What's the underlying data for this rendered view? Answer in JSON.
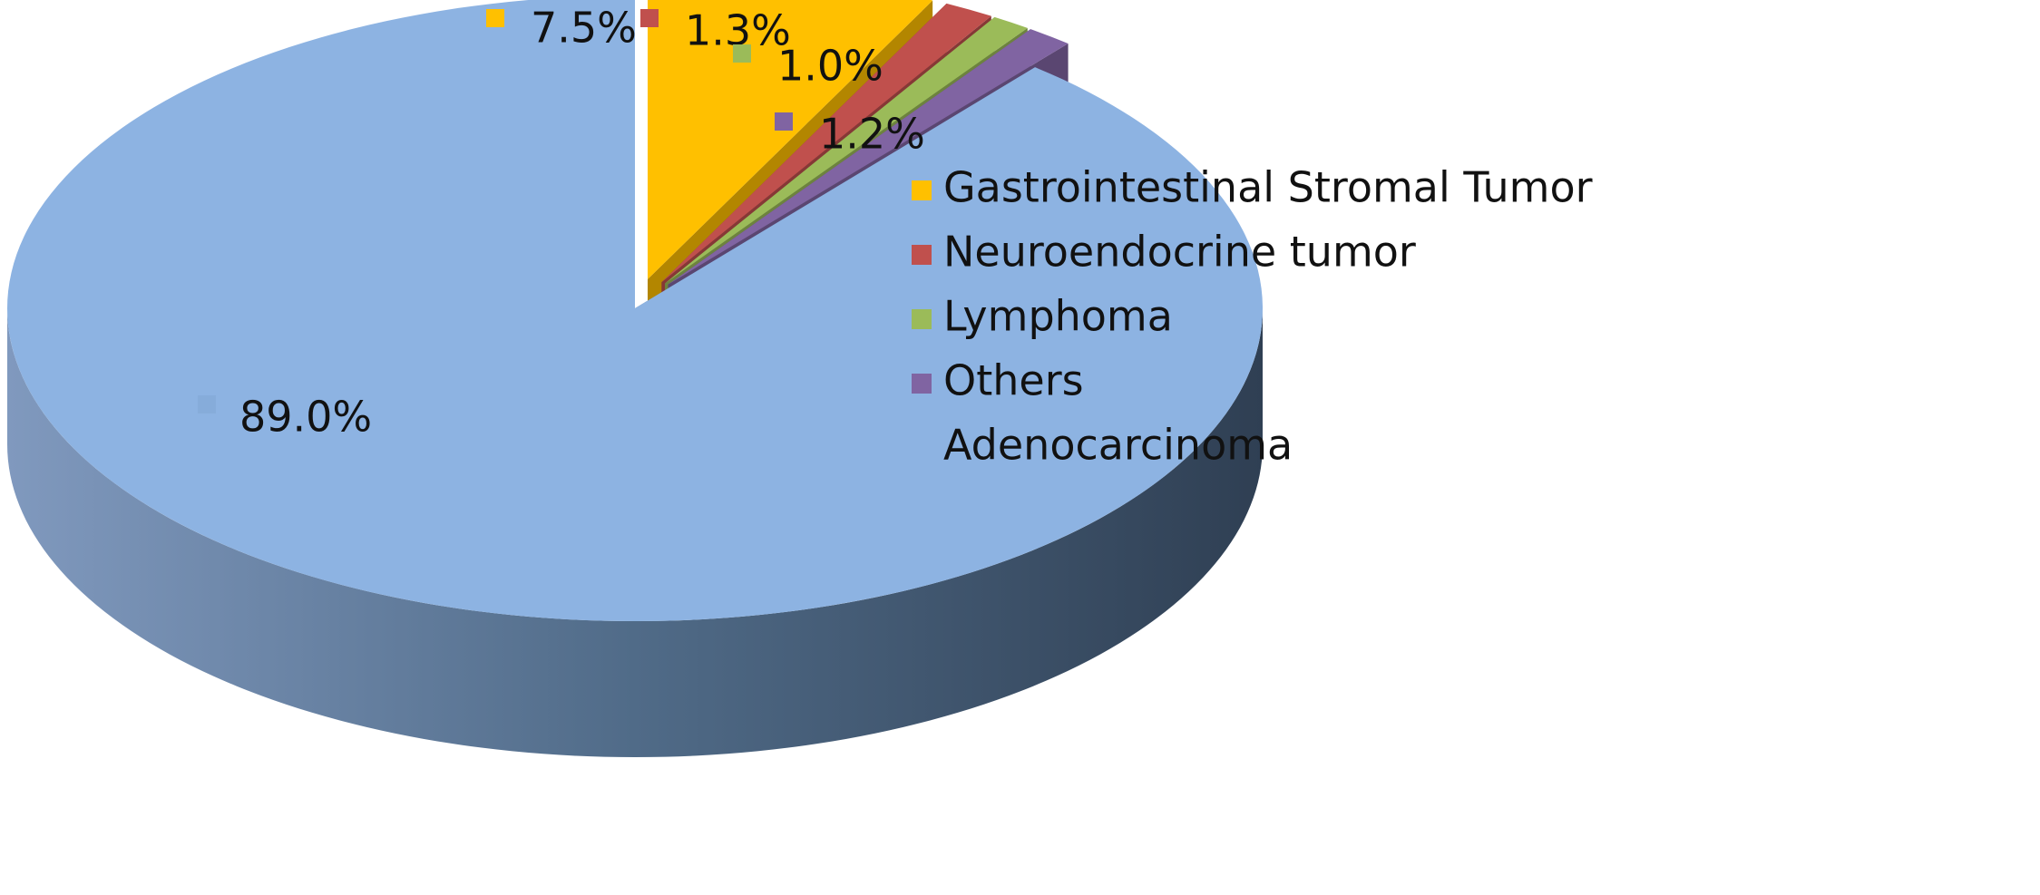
{
  "chart_data": {
    "type": "pie",
    "style": "3d",
    "title": "",
    "slices": [
      {
        "name": "Gastrointestinal Stromal Tumor",
        "value": 7.5,
        "label": "7.5%",
        "color": "#FFC000",
        "exploded": true
      },
      {
        "name": "Neuroendocrine tumor",
        "value": 1.3,
        "label": "1.3%",
        "color": "#C0504D",
        "exploded": true
      },
      {
        "name": "Lymphoma",
        "value": 1.0,
        "label": "1.0%",
        "color": "#9BBB59",
        "exploded": true
      },
      {
        "name": "Others",
        "value": 1.2,
        "label": "1.2%",
        "color": "#8064A2",
        "exploded": true
      },
      {
        "name": "Adenocarcinoma",
        "value": 89.0,
        "label": "89.0%",
        "color": "#8DB3E2",
        "exploded": false
      }
    ],
    "legend": {
      "position": "right",
      "entries": [
        "Gastrointestinal Stromal Tumor",
        "Neuroendocrine tumor",
        "Lymphoma",
        "Others",
        "Adenocarcinoma"
      ]
    }
  }
}
